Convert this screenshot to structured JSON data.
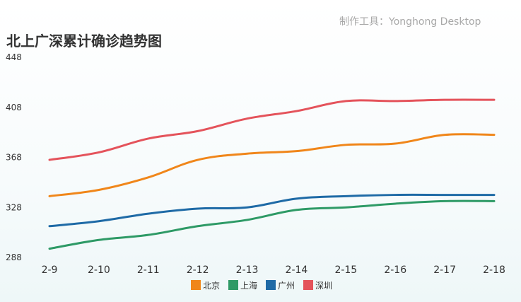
{
  "watermark": "制作工具：Yonghong Desktop",
  "chart_data": {
    "type": "line",
    "title": "北上广深累计确诊趋势图",
    "xlabel": "",
    "ylabel": "",
    "categories": [
      "2-9",
      "2-10",
      "2-11",
      "2-12",
      "2-13",
      "2-14",
      "2-15",
      "2-16",
      "2-17",
      "2-18"
    ],
    "ylim": [
      288,
      448
    ],
    "yticks": [
      288,
      328,
      368,
      408,
      448
    ],
    "grid": false,
    "legend_position": "bottom",
    "series": [
      {
        "name": "北京",
        "color": "#f0861a",
        "values": [
          337,
          342,
          352,
          366,
          371,
          373,
          378,
          379,
          386,
          386
        ]
      },
      {
        "name": "上海",
        "color": "#2e9a66",
        "values": [
          295,
          302,
          306,
          313,
          318,
          326,
          328,
          331,
          333,
          333
        ]
      },
      {
        "name": "广州",
        "color": "#1e6aa6",
        "values": [
          313,
          317,
          323,
          327,
          328,
          335,
          337,
          338,
          338,
          338
        ]
      },
      {
        "name": "深圳",
        "color": "#e4535b",
        "values": [
          366,
          372,
          383,
          389,
          399,
          405,
          413,
          413,
          414,
          414
        ]
      }
    ]
  }
}
